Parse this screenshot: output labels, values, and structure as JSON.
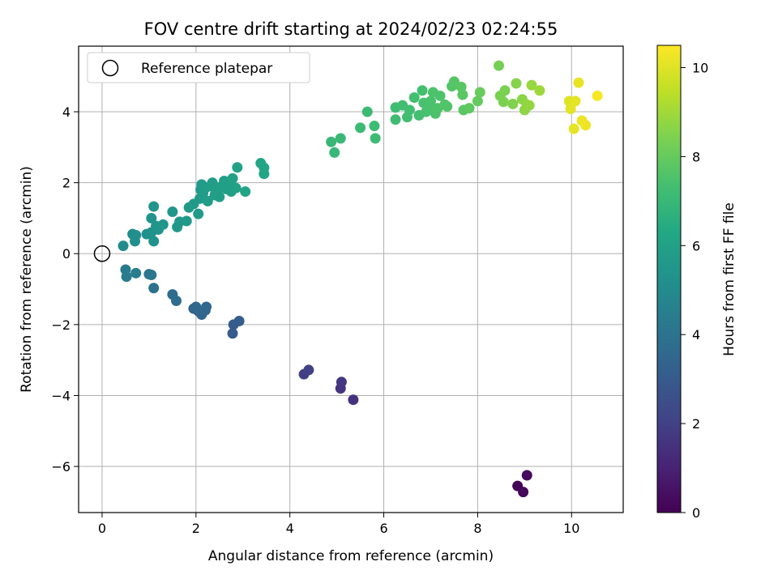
{
  "chart_data": {
    "type": "scatter",
    "title": "FOV centre drift starting at 2024/02/23 02:24:55",
    "xlabel": "Angular distance from reference (arcmin)",
    "ylabel": "Rotation from reference (arcmin)",
    "xlim": [
      -0.5,
      11.1
    ],
    "ylim": [
      -7.3,
      5.85
    ],
    "xticks": [
      0,
      2,
      4,
      6,
      8,
      10
    ],
    "yticks": [
      -6,
      -4,
      -2,
      0,
      2,
      4
    ],
    "grid": true,
    "legend": {
      "placement": "top-left",
      "entries": [
        "Reference platepar"
      ]
    },
    "reference_point": {
      "x": 0,
      "y": 0
    },
    "colorbar": {
      "label": "Hours from first FF file",
      "range": [
        0,
        10.5
      ],
      "ticks": [
        0,
        2,
        4,
        6,
        8,
        10
      ],
      "colormap": "viridis"
    },
    "points": [
      {
        "x": 8.85,
        "y": -6.55,
        "t": 0.1
      },
      {
        "x": 8.97,
        "y": -6.72,
        "t": 0.2
      },
      {
        "x": 9.05,
        "y": -6.25,
        "t": 0.3
      },
      {
        "x": 5.35,
        "y": -4.12,
        "t": 1.5
      },
      {
        "x": 5.08,
        "y": -3.8,
        "t": 1.6
      },
      {
        "x": 5.1,
        "y": -3.62,
        "t": 1.7
      },
      {
        "x": 4.3,
        "y": -3.4,
        "t": 1.9
      },
      {
        "x": 4.4,
        "y": -3.28,
        "t": 2.0
      },
      {
        "x": 2.78,
        "y": -2.25,
        "t": 3.0
      },
      {
        "x": 2.8,
        "y": -2.0,
        "t": 3.05
      },
      {
        "x": 2.92,
        "y": -1.9,
        "t": 3.1
      },
      {
        "x": 1.95,
        "y": -1.55,
        "t": 3.3
      },
      {
        "x": 2.05,
        "y": -1.62,
        "t": 3.35
      },
      {
        "x": 2.12,
        "y": -1.72,
        "t": 3.4
      },
      {
        "x": 2.2,
        "y": -1.6,
        "t": 3.45
      },
      {
        "x": 2.22,
        "y": -1.5,
        "t": 3.5
      },
      {
        "x": 2.0,
        "y": -1.5,
        "t": 3.5
      },
      {
        "x": 1.5,
        "y": -1.15,
        "t": 3.7
      },
      {
        "x": 1.58,
        "y": -1.33,
        "t": 3.75
      },
      {
        "x": 1.1,
        "y": -0.97,
        "t": 3.9
      },
      {
        "x": 1.0,
        "y": -0.58,
        "t": 4.1
      },
      {
        "x": 1.05,
        "y": -0.6,
        "t": 4.15
      },
      {
        "x": 0.5,
        "y": -0.45,
        "t": 4.3
      },
      {
        "x": 0.52,
        "y": -0.65,
        "t": 4.35
      },
      {
        "x": 0.72,
        "y": -0.55,
        "t": 4.4
      },
      {
        "x": 0.45,
        "y": 0.22,
        "t": 5.0
      },
      {
        "x": 0.65,
        "y": 0.55,
        "t": 5.1
      },
      {
        "x": 0.7,
        "y": 0.35,
        "t": 5.15
      },
      {
        "x": 0.72,
        "y": 0.52,
        "t": 5.2
      },
      {
        "x": 0.95,
        "y": 0.55,
        "t": 5.25
      },
      {
        "x": 1.05,
        "y": 0.6,
        "t": 5.3
      },
      {
        "x": 1.1,
        "y": 0.35,
        "t": 5.3
      },
      {
        "x": 1.05,
        "y": 1.0,
        "t": 5.35
      },
      {
        "x": 1.1,
        "y": 1.33,
        "t": 5.4
      },
      {
        "x": 1.15,
        "y": 0.78,
        "t": 5.4
      },
      {
        "x": 1.2,
        "y": 0.68,
        "t": 5.45
      },
      {
        "x": 1.3,
        "y": 0.82,
        "t": 5.5
      },
      {
        "x": 1.5,
        "y": 1.18,
        "t": 5.5
      },
      {
        "x": 1.6,
        "y": 0.75,
        "t": 5.55
      },
      {
        "x": 1.65,
        "y": 0.9,
        "t": 5.55
      },
      {
        "x": 1.8,
        "y": 0.92,
        "t": 5.6
      },
      {
        "x": 1.85,
        "y": 1.3,
        "t": 5.6
      },
      {
        "x": 1.95,
        "y": 1.4,
        "t": 5.65
      },
      {
        "x": 2.05,
        "y": 1.12,
        "t": 5.65
      },
      {
        "x": 2.08,
        "y": 1.55,
        "t": 5.7
      },
      {
        "x": 2.1,
        "y": 1.8,
        "t": 5.7
      },
      {
        "x": 2.12,
        "y": 1.95,
        "t": 5.7
      },
      {
        "x": 2.15,
        "y": 1.7,
        "t": 5.75
      },
      {
        "x": 2.2,
        "y": 1.85,
        "t": 5.75
      },
      {
        "x": 2.25,
        "y": 1.48,
        "t": 5.8
      },
      {
        "x": 2.3,
        "y": 1.9,
        "t": 5.8
      },
      {
        "x": 2.35,
        "y": 2.0,
        "t": 5.8
      },
      {
        "x": 2.4,
        "y": 1.65,
        "t": 5.85
      },
      {
        "x": 2.45,
        "y": 1.78,
        "t": 5.85
      },
      {
        "x": 2.5,
        "y": 1.6,
        "t": 5.85
      },
      {
        "x": 2.55,
        "y": 1.9,
        "t": 5.9
      },
      {
        "x": 2.6,
        "y": 2.05,
        "t": 5.9
      },
      {
        "x": 2.65,
        "y": 1.82,
        "t": 5.9
      },
      {
        "x": 2.7,
        "y": 1.95,
        "t": 5.95
      },
      {
        "x": 2.75,
        "y": 1.75,
        "t": 5.95
      },
      {
        "x": 2.78,
        "y": 2.12,
        "t": 6.0
      },
      {
        "x": 2.85,
        "y": 1.85,
        "t": 6.0
      },
      {
        "x": 2.88,
        "y": 2.43,
        "t": 6.0
      },
      {
        "x": 3.05,
        "y": 1.75,
        "t": 6.05
      },
      {
        "x": 3.38,
        "y": 2.55,
        "t": 6.1
      },
      {
        "x": 3.45,
        "y": 2.42,
        "t": 6.1
      },
      {
        "x": 3.45,
        "y": 2.25,
        "t": 6.15
      },
      {
        "x": 4.88,
        "y": 3.15,
        "t": 7.0
      },
      {
        "x": 4.95,
        "y": 2.85,
        "t": 7.0
      },
      {
        "x": 5.08,
        "y": 3.25,
        "t": 7.05
      },
      {
        "x": 5.5,
        "y": 3.55,
        "t": 7.1
      },
      {
        "x": 5.65,
        "y": 4.0,
        "t": 7.1
      },
      {
        "x": 5.8,
        "y": 3.6,
        "t": 7.15
      },
      {
        "x": 5.82,
        "y": 3.25,
        "t": 7.15
      },
      {
        "x": 6.25,
        "y": 3.78,
        "t": 7.2
      },
      {
        "x": 6.25,
        "y": 4.12,
        "t": 7.2
      },
      {
        "x": 6.4,
        "y": 4.18,
        "t": 7.25
      },
      {
        "x": 6.5,
        "y": 3.85,
        "t": 7.25
      },
      {
        "x": 6.55,
        "y": 4.05,
        "t": 7.3
      },
      {
        "x": 6.65,
        "y": 4.4,
        "t": 7.3
      },
      {
        "x": 6.75,
        "y": 3.9,
        "t": 7.35
      },
      {
        "x": 6.82,
        "y": 4.6,
        "t": 7.35
      },
      {
        "x": 6.85,
        "y": 4.25,
        "t": 7.4
      },
      {
        "x": 6.9,
        "y": 4.0,
        "t": 7.4
      },
      {
        "x": 6.95,
        "y": 4.15,
        "t": 7.45
      },
      {
        "x": 7.0,
        "y": 4.3,
        "t": 7.45
      },
      {
        "x": 7.05,
        "y": 4.55,
        "t": 7.5
      },
      {
        "x": 7.1,
        "y": 3.95,
        "t": 7.5
      },
      {
        "x": 7.15,
        "y": 4.1,
        "t": 7.55
      },
      {
        "x": 7.2,
        "y": 4.45,
        "t": 7.55
      },
      {
        "x": 7.3,
        "y": 4.2,
        "t": 7.6
      },
      {
        "x": 7.35,
        "y": 4.15,
        "t": 7.6
      },
      {
        "x": 7.45,
        "y": 4.72,
        "t": 7.65
      },
      {
        "x": 7.5,
        "y": 4.85,
        "t": 7.7
      },
      {
        "x": 7.65,
        "y": 4.7,
        "t": 7.75
      },
      {
        "x": 7.68,
        "y": 4.48,
        "t": 7.75
      },
      {
        "x": 7.7,
        "y": 4.05,
        "t": 7.8
      },
      {
        "x": 7.82,
        "y": 4.1,
        "t": 7.85
      },
      {
        "x": 8.0,
        "y": 4.3,
        "t": 8.0
      },
      {
        "x": 8.05,
        "y": 4.55,
        "t": 8.05
      },
      {
        "x": 8.45,
        "y": 5.3,
        "t": 8.3
      },
      {
        "x": 8.48,
        "y": 4.45,
        "t": 8.35
      },
      {
        "x": 8.55,
        "y": 4.28,
        "t": 8.4
      },
      {
        "x": 8.58,
        "y": 4.6,
        "t": 8.4
      },
      {
        "x": 8.75,
        "y": 4.22,
        "t": 8.5
      },
      {
        "x": 8.82,
        "y": 4.8,
        "t": 8.55
      },
      {
        "x": 8.95,
        "y": 4.35,
        "t": 8.65
      },
      {
        "x": 9.0,
        "y": 4.05,
        "t": 8.7
      },
      {
        "x": 9.05,
        "y": 4.2,
        "t": 8.75
      },
      {
        "x": 9.1,
        "y": 4.18,
        "t": 8.8
      },
      {
        "x": 9.15,
        "y": 4.75,
        "t": 8.85
      },
      {
        "x": 9.32,
        "y": 4.6,
        "t": 8.95
      },
      {
        "x": 9.95,
        "y": 4.3,
        "t": 10.0
      },
      {
        "x": 9.98,
        "y": 4.08,
        "t": 10.05
      },
      {
        "x": 10.05,
        "y": 3.52,
        "t": 10.1
      },
      {
        "x": 10.08,
        "y": 4.3,
        "t": 10.1
      },
      {
        "x": 10.15,
        "y": 4.82,
        "t": 10.15
      },
      {
        "x": 10.22,
        "y": 3.75,
        "t": 10.2
      },
      {
        "x": 10.3,
        "y": 3.62,
        "t": 10.25
      },
      {
        "x": 10.55,
        "y": 4.45,
        "t": 10.4
      }
    ]
  }
}
